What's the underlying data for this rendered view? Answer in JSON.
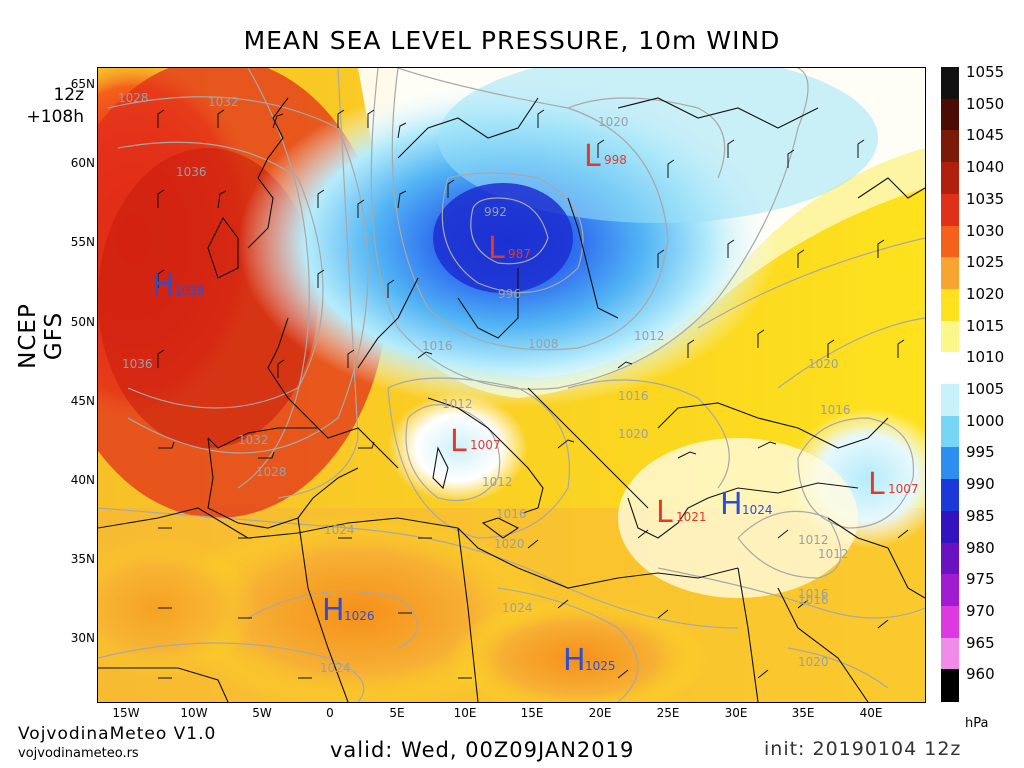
{
  "title": "MEAN SEA LEVEL PRESSURE, 10m WIND",
  "run": {
    "hour": "12z",
    "step": "+108h"
  },
  "model": "NCEP GFS",
  "lat_labels": [
    "65N",
    "60N",
    "55N",
    "50N",
    "45N",
    "40N",
    "35N",
    "30N"
  ],
  "lon_labels": [
    "15W",
    "10W",
    "5W",
    "0",
    "5E",
    "10E",
    "15E",
    "20E",
    "25E",
    "30E",
    "35E",
    "40E"
  ],
  "colorbar": {
    "unit": "hPa",
    "levels": [
      "1055",
      "1050",
      "1045",
      "1040",
      "1035",
      "1030",
      "1025",
      "1020",
      "1015",
      "1010",
      "1005",
      "1000",
      "995",
      "990",
      "985",
      "980",
      "975",
      "970",
      "965",
      "960"
    ],
    "colors": [
      "#111111",
      "#4a0c05",
      "#7a1a08",
      "#b0200c",
      "#e0301a",
      "#f5601a",
      "#f7a431",
      "#fde21d",
      "#fdf68a",
      "#ffffff",
      "#c8f2fb",
      "#77d6f6",
      "#2e8df0",
      "#1c38d8",
      "#3312c0",
      "#6a12c0",
      "#a11bd0",
      "#dc3ae0",
      "#f08ce8",
      "#000000"
    ]
  },
  "centers": [
    {
      "type": "L",
      "value": "998"
    },
    {
      "type": "L",
      "value": "987"
    },
    {
      "type": "H",
      "value": "1038"
    },
    {
      "type": "L",
      "value": "1007"
    },
    {
      "type": "L",
      "value": "1021"
    },
    {
      "type": "H",
      "value": "1024"
    },
    {
      "type": "L",
      "value": "1007"
    },
    {
      "type": "H",
      "value": "1026"
    },
    {
      "type": "H",
      "value": "1025"
    }
  ],
  "isobar_labels": [
    "1028",
    "1032",
    "1036",
    "1036",
    "1032",
    "1028",
    "1020",
    "992",
    "996",
    "1016",
    "1008",
    "1012",
    "1012",
    "1016",
    "1020",
    "1012",
    "1016",
    "1020",
    "1016",
    "1012",
    "1016",
    "1020",
    "1024",
    "1024",
    "1024",
    "1012",
    "1016",
    "1020"
  ],
  "footer": {
    "brand": "VojvodinaMeteo V1.0",
    "url": "vojvodinameteo.rs",
    "valid": "valid: Wed, 00Z09JAN2019",
    "init": "init: 20190104 12z"
  }
}
